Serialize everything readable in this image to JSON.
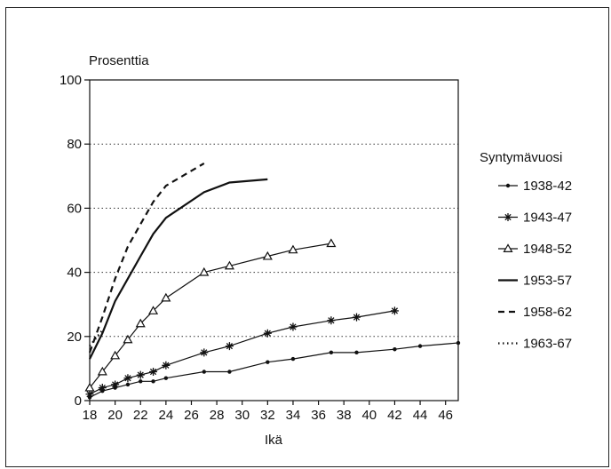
{
  "chart_data": {
    "type": "line",
    "ylabel": "Prosenttia",
    "xlabel": "Ikä",
    "legend_title": "Syntymävuosi",
    "legend_placement": "right",
    "xlim": [
      18,
      47
    ],
    "ylim": [
      0,
      100
    ],
    "x_ticks": [
      18,
      20,
      22,
      24,
      26,
      28,
      30,
      32,
      34,
      36,
      38,
      40,
      42,
      44,
      46
    ],
    "y_ticks": [
      0,
      20,
      40,
      60,
      80,
      100
    ],
    "grid": "horizontal dotted",
    "series": [
      {
        "name": "1938-42",
        "marker": "dot",
        "dash": "solid",
        "points": [
          [
            18,
            1
          ],
          [
            19,
            3
          ],
          [
            20,
            4
          ],
          [
            21,
            5
          ],
          [
            22,
            6
          ],
          [
            23,
            6
          ],
          [
            24,
            7
          ],
          [
            27,
            9
          ],
          [
            29,
            9
          ],
          [
            32,
            12
          ],
          [
            34,
            13
          ],
          [
            37,
            15
          ],
          [
            39,
            15
          ],
          [
            42,
            16
          ],
          [
            44,
            17
          ],
          [
            47,
            18
          ]
        ]
      },
      {
        "name": "1943-47",
        "marker": "star",
        "dash": "solid",
        "points": [
          [
            18,
            2
          ],
          [
            19,
            4
          ],
          [
            20,
            5
          ],
          [
            21,
            7
          ],
          [
            22,
            8
          ],
          [
            23,
            9
          ],
          [
            24,
            11
          ],
          [
            27,
            15
          ],
          [
            29,
            17
          ],
          [
            32,
            21
          ],
          [
            34,
            23
          ],
          [
            37,
            25
          ],
          [
            39,
            26
          ],
          [
            42,
            28
          ]
        ]
      },
      {
        "name": "1948-52",
        "marker": "triangle",
        "dash": "solid",
        "points": [
          [
            18,
            4
          ],
          [
            19,
            9
          ],
          [
            20,
            14
          ],
          [
            21,
            19
          ],
          [
            22,
            24
          ],
          [
            23,
            28
          ],
          [
            24,
            32
          ],
          [
            27,
            40
          ],
          [
            29,
            42
          ],
          [
            32,
            45
          ],
          [
            34,
            47
          ],
          [
            37,
            49
          ]
        ]
      },
      {
        "name": "1953-57",
        "marker": "none",
        "dash": "solid",
        "points": [
          [
            18,
            13
          ],
          [
            19,
            21
          ],
          [
            20,
            31
          ],
          [
            21,
            38
          ],
          [
            22,
            45
          ],
          [
            23,
            52
          ],
          [
            24,
            57
          ],
          [
            27,
            65
          ],
          [
            29,
            68
          ],
          [
            32,
            69
          ]
        ]
      },
      {
        "name": "1958-62",
        "marker": "none",
        "dash": "dashed",
        "points": [
          [
            18,
            15
          ],
          [
            19,
            26
          ],
          [
            20,
            38
          ],
          [
            21,
            48
          ],
          [
            22,
            55
          ],
          [
            23,
            62
          ],
          [
            24,
            67
          ],
          [
            27,
            74
          ]
        ]
      },
      {
        "name": "1963-67",
        "marker": "none",
        "dash": "dotted",
        "points": [
          [
            18,
            17
          ],
          [
            19,
            22
          ]
        ]
      }
    ]
  }
}
